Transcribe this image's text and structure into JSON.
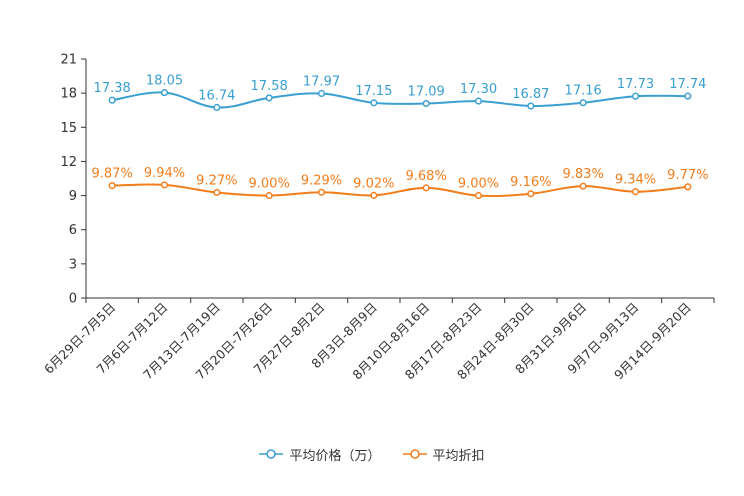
{
  "chart_data": {
    "type": "line",
    "title": "",
    "xlabel": "",
    "ylabel": "",
    "categories": [
      "6月29日-7月5日",
      "7月6日-7月12日",
      "7月13日-7月19日",
      "7月20日-7月26日",
      "7月27日-8月2日",
      "8月3日-8月9日",
      "8月10日-8月16日",
      "8月17日-8月23日",
      "8月24日-8月30日",
      "8月31日-9月6日",
      "9月7日-9月13日",
      "9月14日-9月20日"
    ],
    "ylim": [
      0,
      21
    ],
    "yticks": [
      0,
      3,
      6,
      9,
      12,
      15,
      18,
      21
    ],
    "series": [
      {
        "name": "平均价格（万）",
        "color": "#3a9fd1",
        "values": [
          17.38,
          18.05,
          16.74,
          17.58,
          17.97,
          17.15,
          17.09,
          17.3,
          16.87,
          17.16,
          17.73,
          17.74
        ],
        "labels": [
          "17.38",
          "18.05",
          "16.74",
          "17.58",
          "17.97",
          "17.15",
          "17.09",
          "17.30",
          "16.87",
          "17.16",
          "17.73",
          "17.74"
        ]
      },
      {
        "name": "平均折扣",
        "color": "#f27d1b",
        "values": [
          9.87,
          9.94,
          9.27,
          9.0,
          9.29,
          9.02,
          9.68,
          9.0,
          9.16,
          9.83,
          9.34,
          9.77
        ],
        "labels": [
          "9.87%",
          "9.94%",
          "9.27%",
          "9.00%",
          "9.29%",
          "9.02%",
          "9.68%",
          "9.00%",
          "9.16%",
          "9.83%",
          "9.34%",
          "9.77%"
        ]
      }
    ],
    "legend_position": "bottom-center",
    "grid": false
  }
}
